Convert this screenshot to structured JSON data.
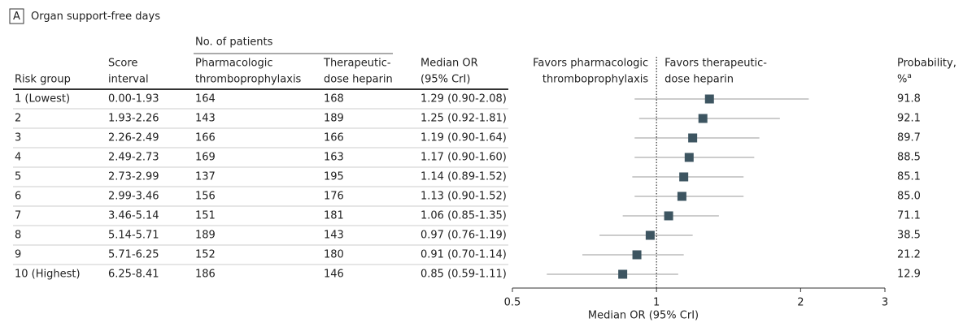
{
  "chart_data": {
    "type": "forest",
    "panel": "A",
    "title": "Organ support-free days",
    "column_group": "No. of patients",
    "columns": [
      {
        "lines": [
          "Risk group"
        ]
      },
      {
        "lines": [
          "Score",
          "interval"
        ]
      },
      {
        "lines": [
          "Pharmacologic",
          "thromboprophylaxis"
        ]
      },
      {
        "lines": [
          "Therapeutic-",
          "dose heparin"
        ]
      },
      {
        "lines": [
          "Median OR",
          "(95% CrI)"
        ]
      }
    ],
    "rows": [
      [
        "1 (Lowest)",
        "0.00-1.93",
        164,
        168
      ],
      [
        "2",
        "1.93-2.26",
        143,
        189
      ],
      [
        "3",
        "2.26-2.49",
        166,
        166
      ],
      [
        "4",
        "2.49-2.73",
        169,
        163
      ],
      [
        "5",
        "2.73-2.99",
        137,
        195
      ],
      [
        "6",
        "2.99-3.46",
        156,
        176
      ],
      [
        "7",
        "3.46-5.14",
        151,
        181
      ],
      [
        "8",
        "5.14-5.71",
        189,
        143
      ],
      [
        "9",
        "5.71-6.25",
        152,
        180
      ],
      [
        "10 (Highest)",
        "6.25-8.41",
        186,
        146
      ]
    ],
    "values": [
      1.29,
      1.25,
      1.19,
      1.17,
      1.14,
      1.13,
      1.06,
      0.97,
      0.91,
      0.85
    ],
    "lower": [
      0.9,
      0.92,
      0.9,
      0.9,
      0.89,
      0.9,
      0.85,
      0.76,
      0.7,
      0.59
    ],
    "upper": [
      2.08,
      1.81,
      1.64,
      1.6,
      1.52,
      1.52,
      1.35,
      1.19,
      1.14,
      1.11
    ],
    "value_labels": [
      "1.29 (0.90-2.08)",
      "1.25 (0.92-1.81)",
      "1.19 (0.90-1.64)",
      "1.17 (0.90-1.60)",
      "1.14 (0.89-1.52)",
      "1.13 (0.90-1.52)",
      "1.06 (0.85-1.35)",
      "0.97 (0.76-1.19)",
      "0.91 (0.70-1.14)",
      "0.85 (0.59-1.11)"
    ],
    "probability_header": [
      "Probability,",
      "%"
    ],
    "probability_note": "a",
    "probability": [
      91.8,
      92.1,
      89.7,
      88.5,
      85.1,
      85.0,
      71.1,
      38.5,
      21.2,
      12.9
    ],
    "probability_labels": [
      "91.8",
      "92.1",
      "89.7",
      "88.5",
      "85.1",
      "85.0",
      "71.1",
      "38.5",
      "21.2",
      "12.9"
    ],
    "favors_left": [
      "Favors pharmacologic",
      "thromboprophylaxis"
    ],
    "favors_right": [
      "Favors therapeutic-",
      "dose heparin"
    ],
    "xlabel": "Median OR (95% CrI)",
    "xscale": "log",
    "xlim": [
      0.5,
      3
    ],
    "xticks": [
      0.5,
      1,
      2,
      3
    ],
    "reference": 1,
    "color": "#3d5561",
    "ci_color": "#9a9a9a"
  }
}
